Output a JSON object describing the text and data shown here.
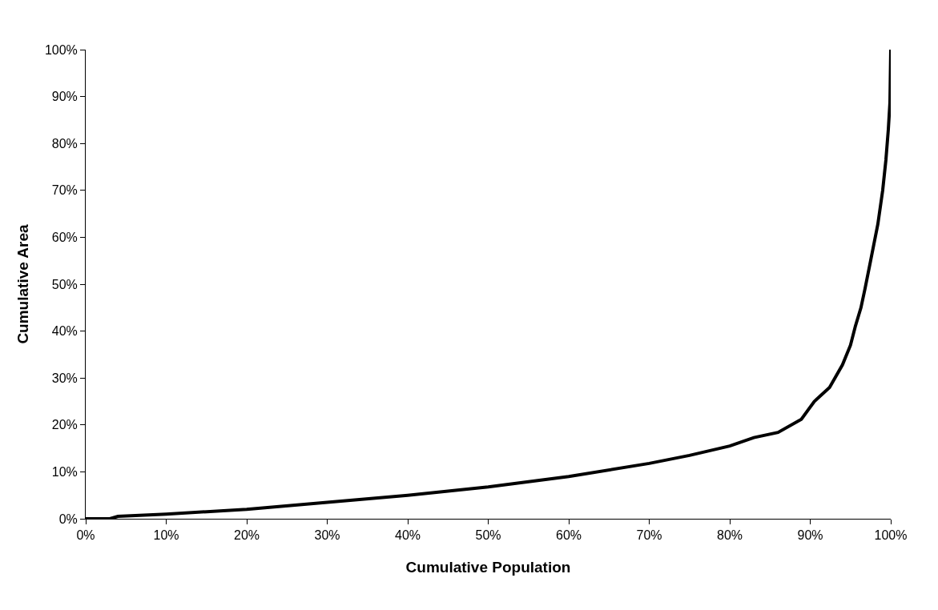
{
  "chart_data": {
    "type": "line",
    "xlabel": "Cumulative Population",
    "ylabel": "Cumulative Area",
    "x": [
      0,
      3,
      4,
      10,
      20,
      30,
      40,
      50,
      60,
      70,
      75,
      80,
      83,
      86,
      88.9,
      90.5,
      92.4,
      94,
      95,
      95.6,
      96.3,
      96.8,
      97.5,
      98.4,
      99,
      99.4,
      99.7,
      99.9,
      100
    ],
    "series": [
      {
        "color": "#000000",
        "values": [
          0,
          0,
          0.5,
          1,
          2,
          3.5,
          5,
          6.8,
          9,
          11.8,
          13.5,
          15.5,
          17.3,
          18.4,
          21.2,
          25,
          28,
          32.8,
          37,
          41,
          45,
          49,
          55,
          62.8,
          70,
          76.5,
          83,
          88.7,
          100
        ]
      }
    ],
    "xlim": [
      0,
      100
    ],
    "ylim": [
      0,
      100
    ],
    "xticks": [
      {
        "value": 0,
        "label": "0%"
      },
      {
        "value": 10,
        "label": "10%"
      },
      {
        "value": 20,
        "label": "20%"
      },
      {
        "value": 30,
        "label": "30%"
      },
      {
        "value": 40,
        "label": "40%"
      },
      {
        "value": 50,
        "label": "50%"
      },
      {
        "value": 60,
        "label": "60%"
      },
      {
        "value": 70,
        "label": "70%"
      },
      {
        "value": 80,
        "label": "80%"
      },
      {
        "value": 90,
        "label": "90%"
      },
      {
        "value": 100,
        "label": "100%"
      }
    ],
    "yticks": [
      {
        "value": 0,
        "label": "0%"
      },
      {
        "value": 10,
        "label": "10%"
      },
      {
        "value": 20,
        "label": "20%"
      },
      {
        "value": 30,
        "label": "30%"
      },
      {
        "value": 40,
        "label": "40%"
      },
      {
        "value": 50,
        "label": "50%"
      },
      {
        "value": 60,
        "label": "60%"
      },
      {
        "value": 70,
        "label": "70%"
      },
      {
        "value": 80,
        "label": "80%"
      },
      {
        "value": 90,
        "label": "90%"
      },
      {
        "value": 100,
        "label": "100%"
      }
    ],
    "marker": "none",
    "line_style": "solid"
  }
}
